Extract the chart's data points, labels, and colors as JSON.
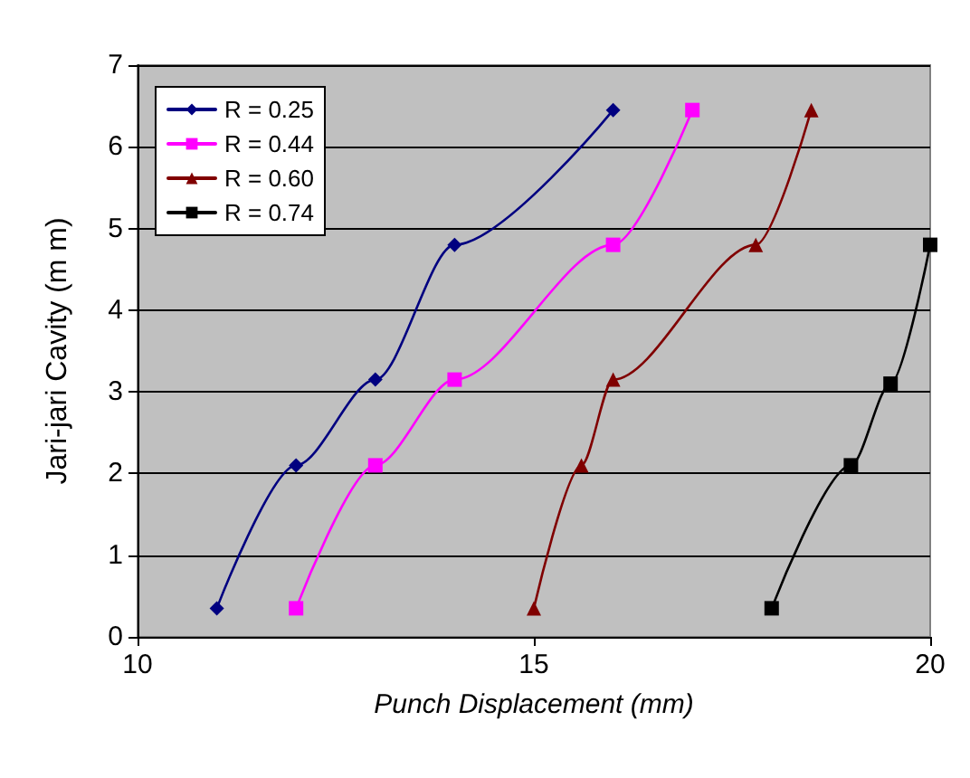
{
  "chart_data": {
    "type": "line",
    "xlabel": "Punch Displacement (mm)",
    "ylabel": "Jari-jari Cavity (m m)",
    "xlim": [
      10,
      20
    ],
    "xticks": [
      10,
      15,
      20
    ],
    "ylim": [
      0,
      7
    ],
    "yticks": [
      0,
      1,
      2,
      3,
      4,
      5,
      6,
      7
    ],
    "grid": "y",
    "legend": "top left",
    "series": [
      {
        "name": "R = 0.25",
        "color": "#000080",
        "marker": "diamond",
        "x": [
          11,
          12,
          13,
          14,
          16
        ],
        "values": [
          0.35,
          2.1,
          3.15,
          4.8,
          6.45
        ]
      },
      {
        "name": "R = 0.44",
        "color": "#ff00ff",
        "marker": "square",
        "x": [
          12,
          13,
          14,
          16,
          17
        ],
        "values": [
          0.35,
          2.1,
          3.15,
          4.8,
          6.45
        ]
      },
      {
        "name": "R = 0.60",
        "color": "#800000",
        "marker": "triangle",
        "x": [
          15,
          15.6,
          16,
          17.8,
          18.5
        ],
        "values": [
          0.35,
          2.1,
          3.15,
          4.8,
          6.45
        ]
      },
      {
        "name": "R = 0.74",
        "color": "#000000",
        "marker": "square",
        "x": [
          18,
          19,
          19.5,
          20
        ],
        "values": [
          0.35,
          2.1,
          3.1,
          4.8
        ]
      }
    ]
  }
}
